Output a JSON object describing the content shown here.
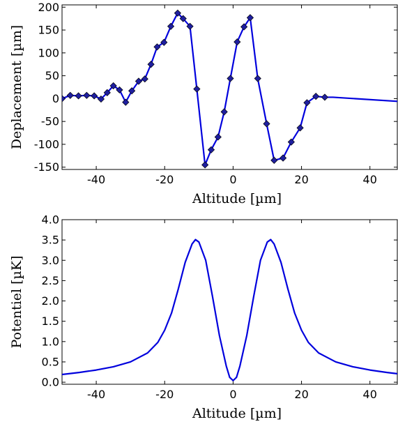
{
  "chart_data": [
    {
      "type": "line",
      "xlabel": "Altitude [µm]",
      "ylabel": "Deplacement [µm]",
      "xlim": [
        -50,
        48
      ],
      "ylim": [
        -155,
        205
      ],
      "xticks": [
        -40,
        -20,
        0,
        20,
        40
      ],
      "xtick_labels": [
        "-40",
        "-20",
        "0",
        "20",
        "40"
      ],
      "yticks": [
        200,
        150,
        100,
        50,
        0,
        -50,
        -100,
        -150
      ],
      "ytick_labels": [
        "200",
        "150",
        "100",
        "50",
        "0",
        "-50",
        "-100",
        "-150"
      ],
      "grid": false,
      "series": [
        {
          "color": "#0000dd",
          "marker": "diamond",
          "marker_color": "#1f1fa0",
          "x": [
            -50,
            -47.6,
            -45.2,
            -42.8,
            -40.6,
            -38.6,
            -36.8,
            -35,
            -33.2,
            -31.4,
            -29.6,
            -27.6,
            -25.8,
            -24,
            -22.2,
            -20.2,
            -18.2,
            -16.2,
            -14.6,
            -12.6,
            -10.6,
            -8.2,
            -6.4,
            -4.4,
            -2.6,
            -0.8,
            1.2,
            3.2,
            5,
            7.2,
            9.8,
            12,
            14.6,
            17,
            19.6,
            21.6,
            24.2,
            26.8,
            29.2,
            48
          ],
          "y": [
            0,
            7,
            6,
            7,
            6,
            -1,
            13,
            28,
            19,
            -8,
            17,
            38,
            43,
            75,
            113,
            123,
            158,
            187,
            175,
            158,
            21,
            -145,
            -112,
            -84,
            -29,
            44,
            124,
            157,
            177,
            44,
            -55,
            -135,
            -130,
            -95,
            -64,
            -9,
            5,
            3,
            3,
            -6
          ],
          "marker_count": 38
        }
      ]
    },
    {
      "type": "line",
      "xlabel": "Altitude [µm]",
      "ylabel": "Potentiel [µK]",
      "xlim": [
        -50,
        48
      ],
      "ylim": [
        -0.05,
        4.0
      ],
      "xticks": [
        -40,
        -20,
        0,
        20,
        40
      ],
      "xtick_labels": [
        "-40",
        "-20",
        "0",
        "20",
        "40"
      ],
      "yticks": [
        4.0,
        3.5,
        3.0,
        2.5,
        2.0,
        1.5,
        1.0,
        0.5,
        0.0
      ],
      "ytick_labels": [
        "4.0",
        "3.5",
        "3.0",
        "2.5",
        "2.0",
        "1.5",
        "1.0",
        "0.5",
        "0.0"
      ],
      "grid": false,
      "series": [
        {
          "color": "#0000dd",
          "x": [
            -50,
            -45,
            -40,
            -35,
            -30,
            -25,
            -22,
            -20,
            -18,
            -16,
            -14,
            -12,
            -11,
            -10,
            -8,
            -6,
            -4,
            -2,
            -1,
            0,
            1,
            2,
            4,
            6,
            8,
            10,
            11,
            12,
            14,
            16,
            18,
            20,
            22,
            25,
            30,
            35,
            40,
            45,
            48
          ],
          "y": [
            0.19,
            0.24,
            0.3,
            0.38,
            0.5,
            0.72,
            0.98,
            1.28,
            1.7,
            2.3,
            2.95,
            3.4,
            3.51,
            3.45,
            3.0,
            2.1,
            1.15,
            0.4,
            0.12,
            0.04,
            0.12,
            0.4,
            1.15,
            2.1,
            3.0,
            3.45,
            3.51,
            3.4,
            2.95,
            2.3,
            1.7,
            1.28,
            0.98,
            0.72,
            0.5,
            0.38,
            0.3,
            0.24,
            0.21
          ]
        }
      ]
    }
  ]
}
